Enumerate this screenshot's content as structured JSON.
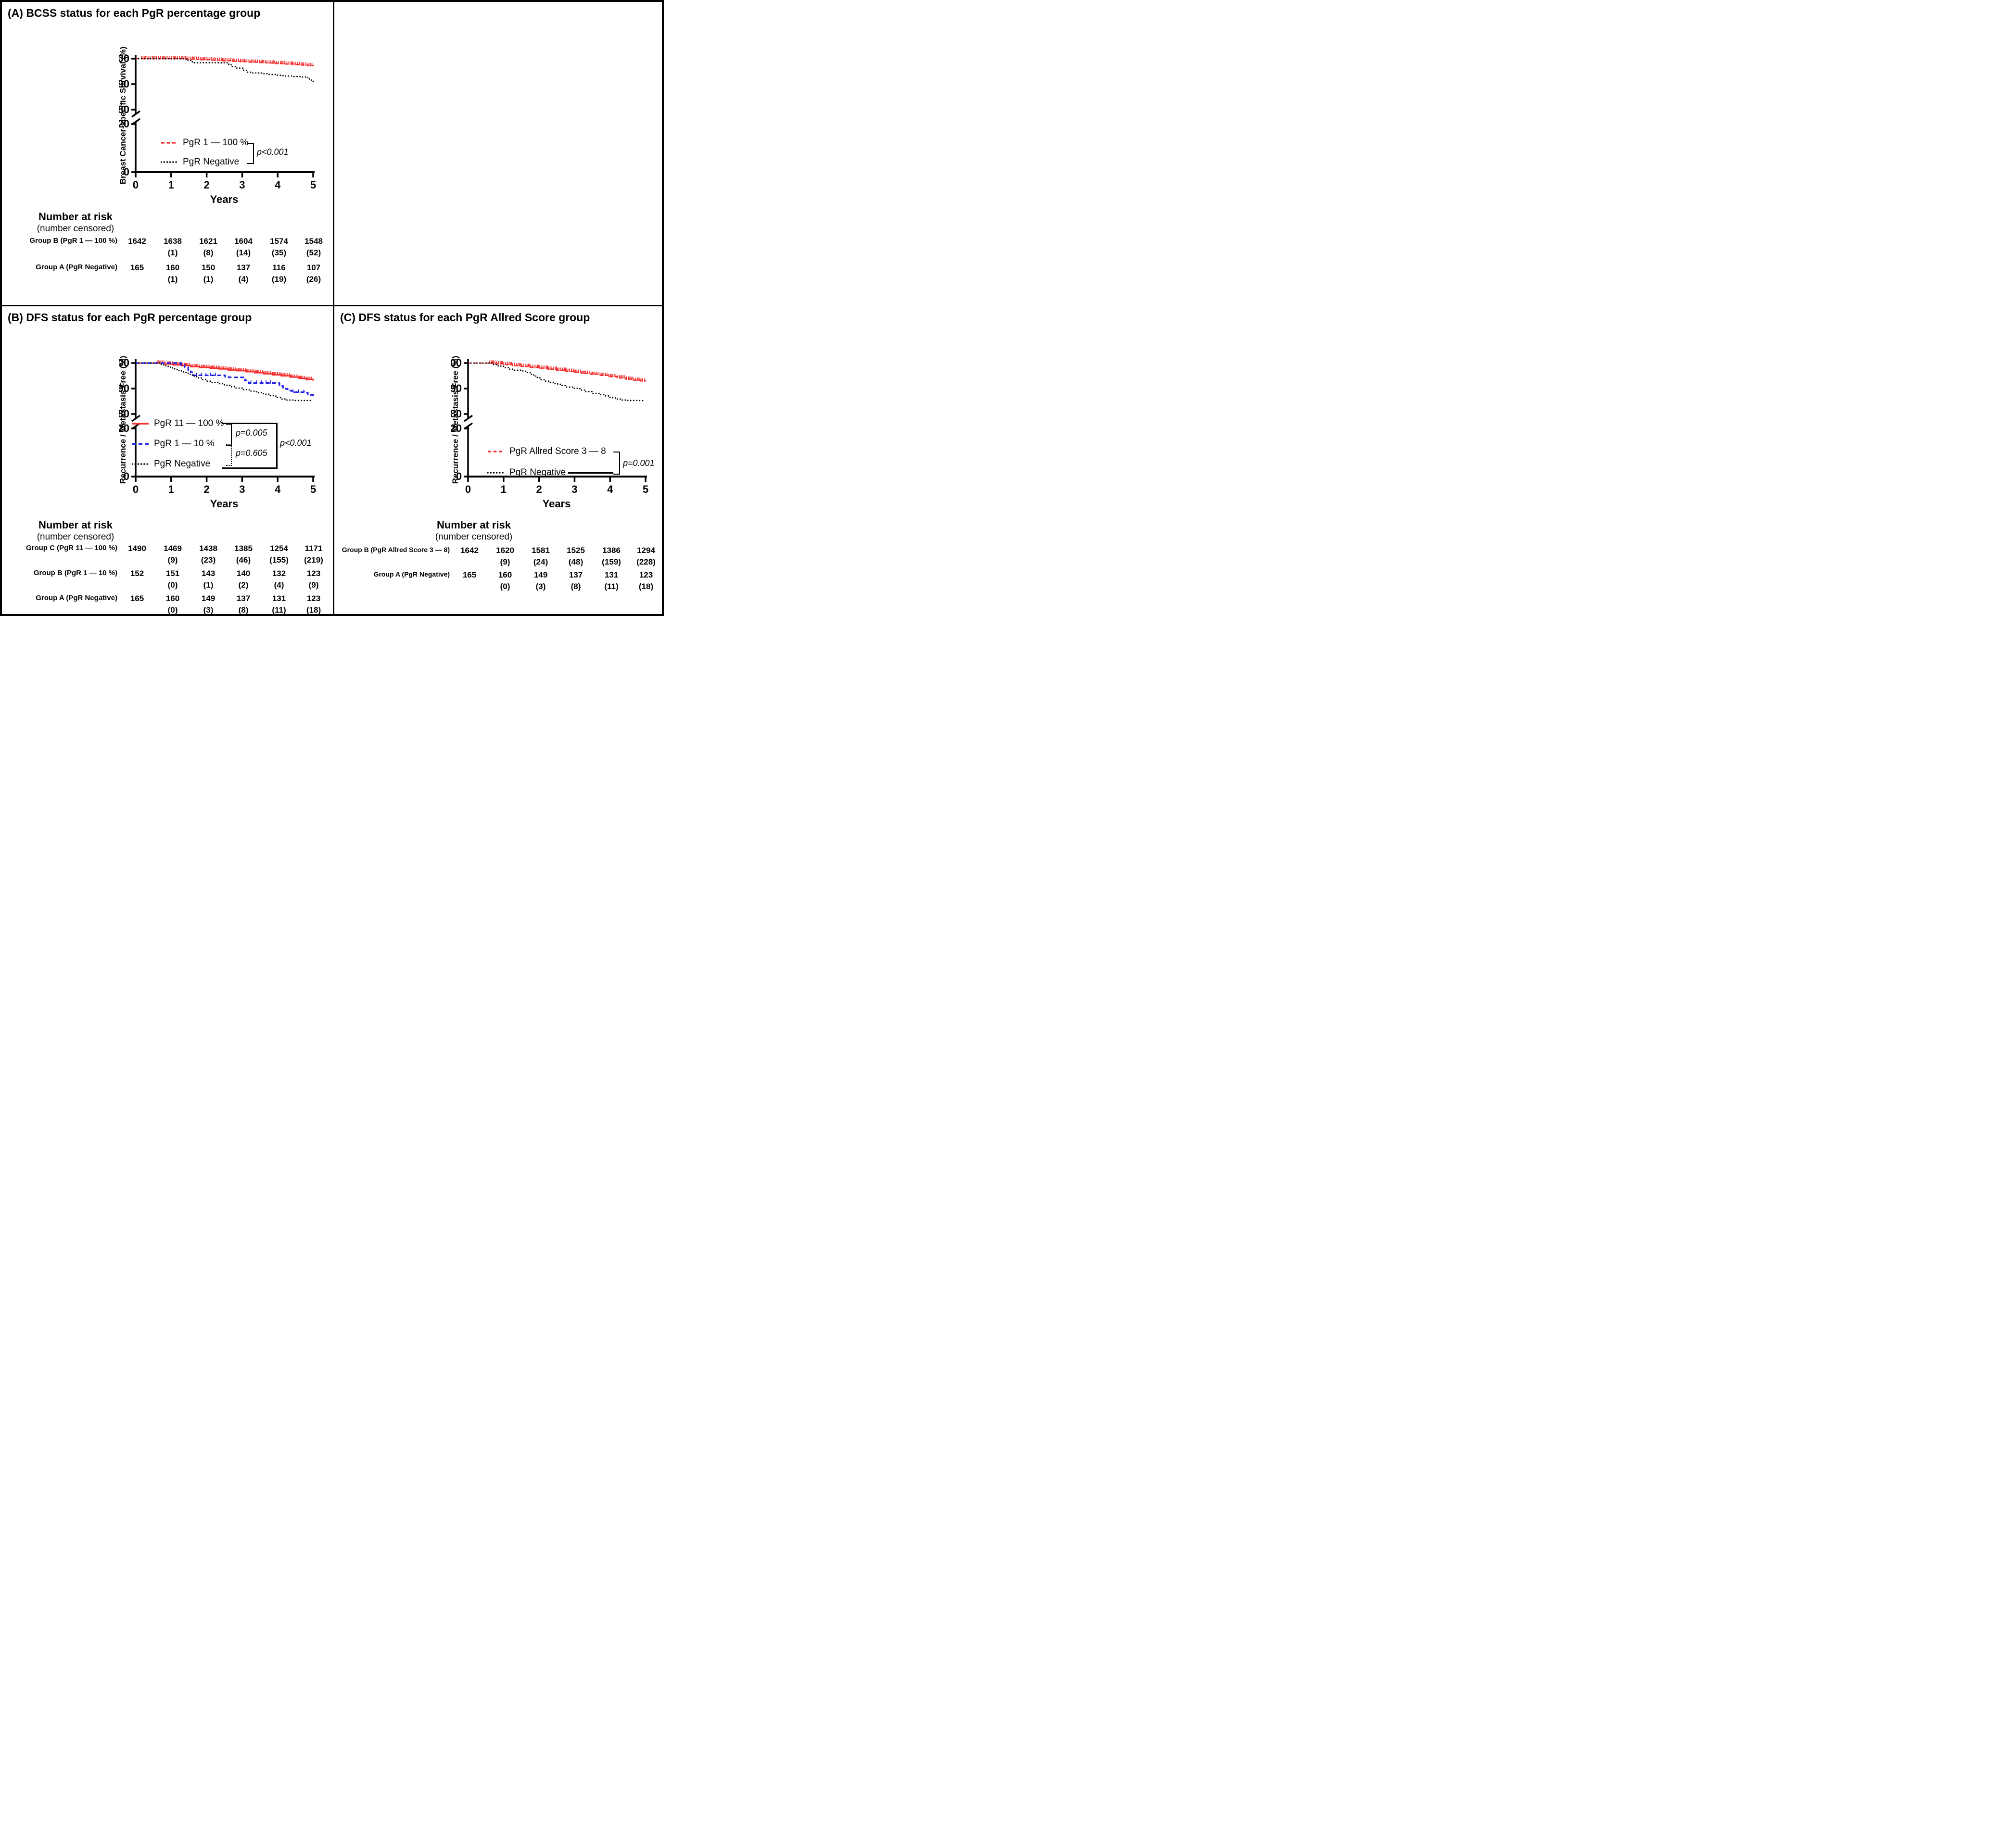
{
  "figure_title": "Kaplan-Meier survival panels for PgR groups",
  "chart_data": [
    {
      "type": "line",
      "subtype": "kaplan-meier-step",
      "panel": "A",
      "title": "(A) BCSS status for each PgR percentage group",
      "xlabel": "Years",
      "ylabel": "Breast Cancer-specific Survival (%)",
      "xlim": [
        0,
        5
      ],
      "x_ticks": [
        0,
        1,
        2,
        3,
        4,
        5
      ],
      "y_ticks_upper": [
        100,
        90,
        80
      ],
      "y_ticks_lower": [
        20,
        0
      ],
      "y_axis_break": [
        20,
        80
      ],
      "grid": false,
      "legend_position": "inside-lower-left",
      "pvalues": [
        "p<0.001"
      ],
      "series": [
        {
          "name": "PgR 1 — 100 %",
          "color": "#f62d2d",
          "dash": "dashed",
          "censor_step": 0.045,
          "censor_ranges": [
            [
              0.15,
              5
            ]
          ],
          "points": [
            [
              0,
              100
            ],
            [
              1.2,
              100
            ],
            [
              1.45,
              99.8
            ],
            [
              1.8,
              99.6
            ],
            [
              2.15,
              99.4
            ],
            [
              2.45,
              99.2
            ],
            [
              2.7,
              99.0
            ],
            [
              2.95,
              98.85
            ],
            [
              3.2,
              98.65
            ],
            [
              3.45,
              98.5
            ],
            [
              3.7,
              98.3
            ],
            [
              3.95,
              98.1
            ],
            [
              4.2,
              97.9
            ],
            [
              4.45,
              97.7
            ],
            [
              4.65,
              97.5
            ],
            [
              4.85,
              97.3
            ],
            [
              5,
              97.15
            ]
          ]
        },
        {
          "name": "PgR Negative",
          "color": "#000000",
          "dash": "dotted",
          "points": [
            [
              0,
              100
            ],
            [
              1.33,
              100
            ],
            [
              1.42,
              99.4
            ],
            [
              1.55,
              98.8
            ],
            [
              1.65,
              98.4
            ],
            [
              2.5,
              98.4
            ],
            [
              2.62,
              97.6
            ],
            [
              2.72,
              96.9
            ],
            [
              2.85,
              96.3
            ],
            [
              3.02,
              95.5
            ],
            [
              3.12,
              94.7
            ],
            [
              3.25,
              94.4
            ],
            [
              3.55,
              94.1
            ],
            [
              3.75,
              93.8
            ],
            [
              3.95,
              93.5
            ],
            [
              4.15,
              93.2
            ],
            [
              4.45,
              93.0
            ],
            [
              4.7,
              92.8
            ],
            [
              4.85,
              92.0
            ],
            [
              4.95,
              91.3
            ],
            [
              5,
              90.8
            ]
          ]
        }
      ],
      "risk_table": {
        "heading": "Number at risk",
        "subheading": "(number censored)",
        "time_points": [
          0,
          1,
          2,
          3,
          4,
          5
        ],
        "rows": [
          {
            "label": "Group B (PgR 1 — 100 %)",
            "at_risk": [
              1642,
              1638,
              1621,
              1604,
              1574,
              1548
            ],
            "censored": [
              null,
              1,
              8,
              14,
              35,
              52
            ]
          },
          {
            "label": "Group A (PgR Negative)",
            "at_risk": [
              165,
              160,
              150,
              137,
              116,
              107
            ],
            "censored": [
              null,
              1,
              1,
              4,
              19,
              26
            ]
          }
        ]
      }
    },
    {
      "type": "line",
      "subtype": "kaplan-meier-step",
      "panel": "B",
      "title": "(B) DFS status for each PgR percentage group",
      "xlabel": "Years",
      "ylabel": "Recurrence / Metastasis Free (%)",
      "xlim": [
        0,
        5
      ],
      "x_ticks": [
        0,
        1,
        2,
        3,
        4,
        5
      ],
      "y_ticks_upper": [
        100,
        90,
        80
      ],
      "y_ticks_lower": [
        20,
        0
      ],
      "y_axis_break": [
        20,
        80
      ],
      "grid": false,
      "legend_position": "inside-lower-left",
      "pvalues": [
        "p=0.005",
        "p=0.605",
        "p<0.001"
      ],
      "series": [
        {
          "name": "PgR 11 — 100 %",
          "color": "#f62d2d",
          "dash": "solid",
          "censor_step": 0.04,
          "censor_ranges": [
            [
              0.6,
              5
            ]
          ],
          "points": [
            [
              0,
              100
            ],
            [
              0.55,
              100
            ],
            [
              0.8,
              99.6
            ],
            [
              1.05,
              99.3
            ],
            [
              1.3,
              99.0
            ],
            [
              1.55,
              98.6
            ],
            [
              1.8,
              98.3
            ],
            [
              2.1,
              98.0
            ],
            [
              2.35,
              97.7
            ],
            [
              2.6,
              97.3
            ],
            [
              2.85,
              97.0
            ],
            [
              3.1,
              96.6
            ],
            [
              3.35,
              96.2
            ],
            [
              3.6,
              95.8
            ],
            [
              3.85,
              95.4
            ],
            [
              4.1,
              95.0
            ],
            [
              4.35,
              94.5
            ],
            [
              4.6,
              94.0
            ],
            [
              4.8,
              93.6
            ],
            [
              5,
              93.1
            ]
          ]
        },
        {
          "name": "PgR 1 — 10 %",
          "color": "#2121e8",
          "dash": "dashed-long",
          "censor_step": 0.14,
          "censor_ranges": [
            [
              1.7,
              2.4
            ],
            [
              3.25,
              3.9
            ],
            [
              4.45,
              4.75
            ]
          ],
          "points": [
            [
              0,
              100
            ],
            [
              1.2,
              100
            ],
            [
              1.28,
              99.2
            ],
            [
              1.38,
              98.3
            ],
            [
              1.48,
              97.3
            ],
            [
              1.55,
              96.4
            ],
            [
              1.62,
              95.2
            ],
            [
              2.4,
              95.2
            ],
            [
              2.52,
              94.7
            ],
            [
              2.62,
              94.4
            ],
            [
              2.98,
              94.4
            ],
            [
              3.08,
              93.2
            ],
            [
              3.18,
              92.2
            ],
            [
              3.95,
              92.2
            ],
            [
              4.05,
              91.0
            ],
            [
              4.15,
              89.9
            ],
            [
              4.28,
              89.2
            ],
            [
              4.4,
              88.6
            ],
            [
              4.75,
              88.4
            ],
            [
              4.85,
              87.5
            ],
            [
              5,
              86.9
            ]
          ]
        },
        {
          "name": "PgR Negative",
          "color": "#000000",
          "dash": "dotted",
          "points": [
            [
              0,
              100
            ],
            [
              0.6,
              100
            ],
            [
              0.72,
              99.3
            ],
            [
              0.85,
              98.7
            ],
            [
              0.98,
              98.1
            ],
            [
              1.1,
              97.5
            ],
            [
              1.22,
              96.9
            ],
            [
              1.35,
              96.3
            ],
            [
              1.48,
              95.6
            ],
            [
              1.6,
              94.9
            ],
            [
              1.72,
              94.2
            ],
            [
              1.85,
              93.5
            ],
            [
              1.98,
              92.9
            ],
            [
              2.15,
              92.4
            ],
            [
              2.35,
              91.9
            ],
            [
              2.5,
              91.3
            ],
            [
              2.65,
              90.7
            ],
            [
              2.8,
              90.2
            ],
            [
              3.0,
              89.6
            ],
            [
              3.2,
              89.0
            ],
            [
              3.4,
              88.4
            ],
            [
              3.6,
              87.8
            ],
            [
              3.78,
              87.2
            ],
            [
              3.95,
              86.5
            ],
            [
              4.1,
              85.9
            ],
            [
              4.25,
              85.5
            ],
            [
              4.45,
              85.3
            ],
            [
              5,
              85.3
            ]
          ]
        }
      ],
      "risk_table": {
        "heading": "Number at risk",
        "subheading": "(number censored)",
        "time_points": [
          0,
          1,
          2,
          3,
          4,
          5
        ],
        "rows": [
          {
            "label": "Group C (PgR 11 — 100 %)",
            "at_risk": [
              1490,
              1469,
              1438,
              1385,
              1254,
              1171
            ],
            "censored": [
              null,
              9,
              23,
              46,
              155,
              219
            ]
          },
          {
            "label": "Group B (PgR 1 — 10 %)",
            "at_risk": [
              152,
              151,
              143,
              140,
              132,
              123
            ],
            "censored": [
              null,
              0,
              1,
              2,
              4,
              9
            ]
          },
          {
            "label": "Group A (PgR Negative)",
            "at_risk": [
              165,
              160,
              149,
              137,
              131,
              123
            ],
            "censored": [
              null,
              0,
              3,
              8,
              11,
              18
            ]
          }
        ]
      }
    },
    {
      "type": "line",
      "subtype": "kaplan-meier-step",
      "panel": "C",
      "title": "(C) DFS status for each PgR Allred Score group",
      "xlabel": "Years",
      "ylabel": "Recurrence / Metastasis Free (%)",
      "xlim": [
        0,
        5
      ],
      "x_ticks": [
        0,
        1,
        2,
        3,
        4,
        5
      ],
      "y_ticks_upper": [
        100,
        90,
        80
      ],
      "y_ticks_lower": [
        20,
        0
      ],
      "y_axis_break": [
        20,
        80
      ],
      "grid": false,
      "legend_position": "inside-lower-left",
      "pvalues": [
        "p=0.001"
      ],
      "series": [
        {
          "name": "PgR Allred Score 3 — 8",
          "color": "#f62d2d",
          "dash": "dashed",
          "censor_step": 0.042,
          "censor_ranges": [
            [
              0.6,
              5
            ]
          ],
          "points": [
            [
              0,
              100
            ],
            [
              0.55,
              100
            ],
            [
              0.78,
              99.7
            ],
            [
              1.0,
              99.4
            ],
            [
              1.25,
              99.0
            ],
            [
              1.5,
              98.7
            ],
            [
              1.75,
              98.3
            ],
            [
              2.0,
              98.0
            ],
            [
              2.25,
              97.6
            ],
            [
              2.5,
              97.2
            ],
            [
              2.75,
              96.8
            ],
            [
              3.0,
              96.4
            ],
            [
              3.2,
              96.0
            ],
            [
              3.45,
              95.6
            ],
            [
              3.7,
              95.2
            ],
            [
              3.95,
              94.7
            ],
            [
              4.2,
              94.2
            ],
            [
              4.45,
              93.7
            ],
            [
              4.65,
              93.3
            ],
            [
              4.85,
              93.0
            ],
            [
              5,
              92.8
            ]
          ]
        },
        {
          "name": "PgR Negative",
          "color": "#000000",
          "dash": "dotted",
          "points": [
            [
              0,
              100
            ],
            [
              0.6,
              100
            ],
            [
              0.72,
              99.4
            ],
            [
              0.85,
              98.8
            ],
            [
              1.0,
              98.2
            ],
            [
              1.15,
              97.6
            ],
            [
              1.3,
              97.2
            ],
            [
              1.5,
              96.9
            ],
            [
              1.62,
              96.3
            ],
            [
              1.75,
              95.6
            ],
            [
              1.85,
              94.9
            ],
            [
              1.95,
              94.2
            ],
            [
              2.05,
              93.5
            ],
            [
              2.18,
              92.9
            ],
            [
              2.3,
              92.4
            ],
            [
              2.45,
              91.8
            ],
            [
              2.6,
              91.2
            ],
            [
              2.75,
              90.6
            ],
            [
              2.95,
              90.1
            ],
            [
              3.15,
              89.4
            ],
            [
              3.3,
              88.8
            ],
            [
              3.5,
              88.1
            ],
            [
              3.7,
              87.6
            ],
            [
              3.85,
              87.1
            ],
            [
              4.0,
              86.4
            ],
            [
              4.15,
              85.9
            ],
            [
              4.3,
              85.5
            ],
            [
              4.5,
              85.3
            ],
            [
              5,
              85.3
            ]
          ]
        }
      ],
      "risk_table": {
        "heading": "Number at risk",
        "subheading": "(number censored)",
        "time_points": [
          0,
          1,
          2,
          3,
          4,
          5
        ],
        "rows": [
          {
            "label": "Group B (PgR Allred Score 3 — 8)",
            "at_risk": [
              1642,
              1620,
              1581,
              1525,
              1386,
              1294
            ],
            "censored": [
              null,
              9,
              24,
              48,
              159,
              228
            ]
          },
          {
            "label": "Group A (PgR Negative)",
            "at_risk": [
              165,
              160,
              149,
              137,
              131,
              123
            ],
            "censored": [
              null,
              0,
              3,
              8,
              11,
              18
            ]
          }
        ]
      }
    }
  ]
}
